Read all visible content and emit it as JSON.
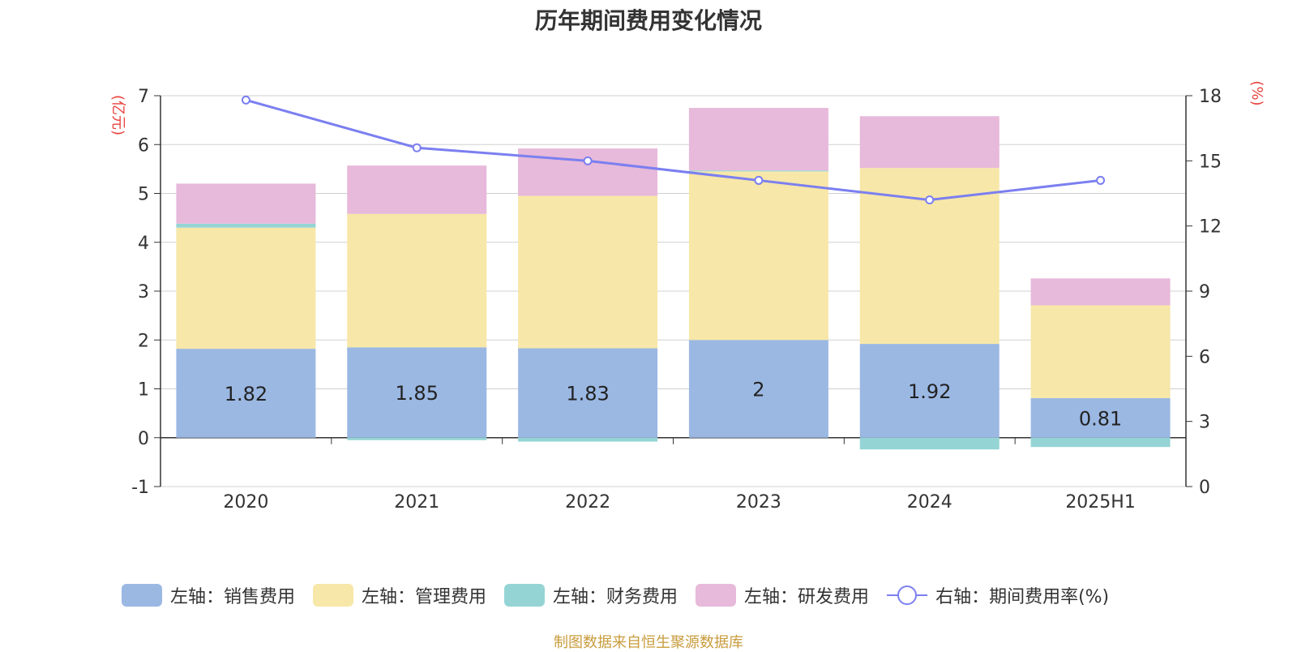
{
  "title": "历年期间费用变化情况",
  "source_note": "制图数据来自恒生聚源数据库",
  "colors": {
    "sales": "#9bb8e3",
    "admin": "#f7e7a8",
    "finance": "#95d4d4",
    "rd": "#e7b9da",
    "rate": "#7b7ff0",
    "axis_unit": "#e8433d"
  },
  "chart_data": {
    "type": "bar",
    "stacked": true,
    "categories": [
      "2020",
      "2021",
      "2022",
      "2023",
      "2024",
      "2025H1"
    ],
    "left_axis": {
      "label": "(亿元)",
      "ylim": [
        -1,
        7
      ],
      "ticks": [
        -1,
        0,
        1,
        2,
        3,
        4,
        5,
        6,
        7
      ]
    },
    "right_axis": {
      "label": "(%)",
      "ylim": [
        0,
        18
      ],
      "ticks": [
        0,
        3,
        6,
        9,
        12,
        15,
        18
      ]
    },
    "series": [
      {
        "name": "左轴：销售费用",
        "key": "sales",
        "axis": "left",
        "kind": "bar",
        "values": [
          1.82,
          1.85,
          1.83,
          2,
          1.92,
          0.81
        ],
        "labels": [
          "1.82",
          "1.85",
          "1.83",
          "2",
          "1.92",
          "0.81"
        ]
      },
      {
        "name": "左轴：管理费用",
        "key": "admin",
        "axis": "left",
        "kind": "bar",
        "values": [
          2.48,
          2.73,
          3.12,
          3.45,
          3.6,
          1.9
        ]
      },
      {
        "name": "左轴：财务费用",
        "key": "finance",
        "axis": "left",
        "kind": "bar",
        "values": [
          0.08,
          -0.05,
          -0.08,
          0.02,
          -0.24,
          -0.19
        ]
      },
      {
        "name": "左轴：研发费用",
        "key": "rd",
        "axis": "left",
        "kind": "bar",
        "values": [
          0.82,
          0.99,
          0.97,
          1.28,
          1.06,
          0.55
        ]
      },
      {
        "name": "右轴：期间费用率(%)",
        "key": "rate",
        "axis": "right",
        "kind": "line",
        "values": [
          17.8,
          15.6,
          15.0,
          14.1,
          13.2,
          14.1
        ]
      }
    ],
    "legend_position": "bottom",
    "grid": true
  }
}
